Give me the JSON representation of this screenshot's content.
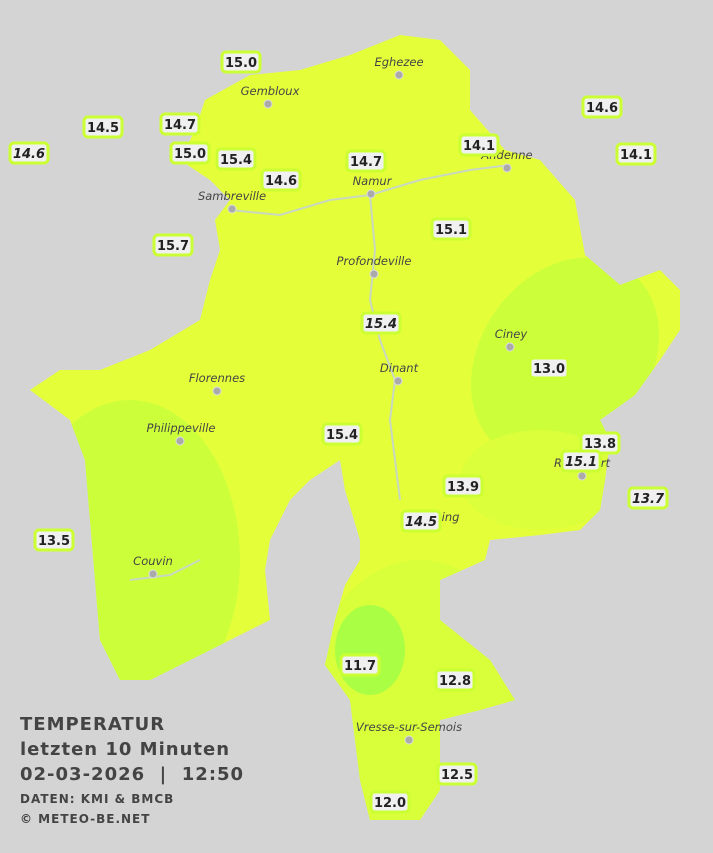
{
  "legend": {
    "title": "TEMPERATUR",
    "period": "letzten 10 Minuten",
    "datetime": "02-03-2026  |  12:50",
    "source": "DATEN: KMI & BMCB",
    "copyright": "© METEO-BE.NET"
  },
  "cities": [
    "Eghezee",
    "Gembloux",
    "Andenne",
    "Namur",
    "Sambreville",
    "Profondeville",
    "Ciney",
    "Dinant",
    "Florennes",
    "Philippeville",
    "Beauraing",
    "Rochefort",
    "Couvin",
    "Vresse-sur-Semois"
  ],
  "stations": [
    {
      "value": "15.0"
    },
    {
      "value": "14.5"
    },
    {
      "value": "14.7"
    },
    {
      "value": "14.6"
    },
    {
      "value": "15.0"
    },
    {
      "value": "15.4"
    },
    {
      "value": "14.6"
    },
    {
      "value": "14.7"
    },
    {
      "value": "14.1"
    },
    {
      "value": "14.6"
    },
    {
      "value": "14.1"
    },
    {
      "value": "15.7"
    },
    {
      "value": "15.1"
    },
    {
      "value": "15.4"
    },
    {
      "value": "13.0"
    },
    {
      "value": "15.4"
    },
    {
      "value": "13.8"
    },
    {
      "value": "15.1"
    },
    {
      "value": "13.9"
    },
    {
      "value": "13.7"
    },
    {
      "value": "14.5"
    },
    {
      "value": "13.5"
    },
    {
      "value": "11.7"
    },
    {
      "value": "12.8"
    },
    {
      "value": "12.5"
    },
    {
      "value": "12.0"
    }
  ]
}
